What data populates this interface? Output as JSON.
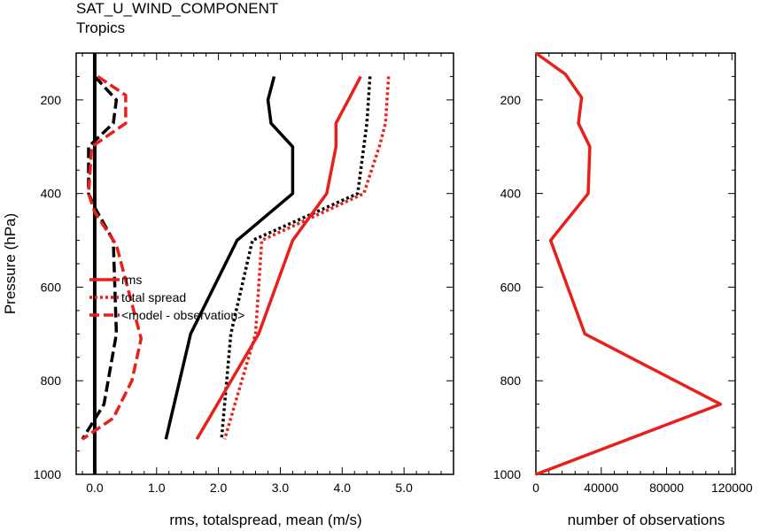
{
  "title": "SAT_U_WIND_COMPONENT",
  "subtitle": "Tropics",
  "colors": {
    "red": "#e8201c",
    "black": "#000000"
  },
  "chart_data": [
    {
      "type": "line",
      "orientation": "vertical-profile",
      "xlabel": "rms, totalspread, mean (m/s)",
      "ylabel": "Pressure (hPa)",
      "xlim": [
        -0.3,
        5.8
      ],
      "ylim": [
        1000,
        100
      ],
      "xticks": [
        0.0,
        1.0,
        2.0,
        3.0,
        4.0,
        5.0
      ],
      "xtick_labels": [
        "0.0",
        "1.0",
        "2.0",
        "3.0",
        "4.0",
        "5.0"
      ],
      "yticks": [
        200,
        400,
        600,
        800,
        1000
      ],
      "ytick_labels": [
        "200",
        "400",
        "600",
        "800",
        "1000"
      ],
      "zero_line_x": 0,
      "legend": {
        "placement": "center-left",
        "entries": [
          {
            "label": "rms",
            "style": "solid"
          },
          {
            "label": "total spread",
            "style": "dotted"
          },
          {
            "label": "<model - observation>",
            "style": "dashed"
          }
        ]
      },
      "series": [
        {
          "color": "black",
          "style": "solid",
          "x": [
            2.9,
            2.8,
            2.85,
            3.2,
            3.2,
            2.3,
            1.55,
            1.15
          ],
          "y": [
            150,
            200,
            250,
            300,
            400,
            500,
            700,
            925
          ]
        },
        {
          "color": "black",
          "style": "dotted",
          "x": [
            4.45,
            4.4,
            4.35,
            4.25,
            2.55,
            2.2,
            2.05
          ],
          "y": [
            150,
            250,
            300,
            400,
            500,
            700,
            925
          ]
        },
        {
          "color": "black",
          "style": "dashed",
          "x": [
            0.0,
            0.35,
            0.3,
            -0.1,
            -0.1,
            0.0,
            0.3,
            0.35,
            0.15,
            -0.2
          ],
          "y": [
            150,
            200,
            250,
            300,
            400,
            430,
            500,
            700,
            850,
            925
          ]
        },
        {
          "color": "red",
          "style": "solid",
          "x": [
            4.3,
            4.1,
            3.9,
            3.9,
            3.75,
            3.2,
            2.65,
            1.65
          ],
          "y": [
            150,
            200,
            250,
            300,
            400,
            500,
            700,
            925
          ]
        },
        {
          "color": "red",
          "style": "dotted",
          "x": [
            4.75,
            4.7,
            4.6,
            4.35,
            2.7,
            2.6,
            2.1
          ],
          "y": [
            150,
            250,
            300,
            400,
            500,
            700,
            925
          ]
        },
        {
          "color": "red",
          "style": "dashed",
          "x": [
            0.05,
            0.5,
            0.5,
            -0.05,
            -0.1,
            0.0,
            0.35,
            0.75,
            0.6,
            0.3,
            -0.2
          ],
          "y": [
            150,
            190,
            250,
            300,
            400,
            440,
            510,
            710,
            800,
            880,
            925
          ]
        }
      ]
    },
    {
      "type": "line",
      "orientation": "vertical-profile",
      "xlabel": "number of observations",
      "ylabel": "",
      "xlim": [
        0,
        122000
      ],
      "ylim": [
        1000,
        100
      ],
      "xticks": [
        0,
        40000,
        80000,
        120000
      ],
      "xtick_labels": [
        "0",
        "40000",
        "80000",
        "120000"
      ],
      "yticks": [
        200,
        400,
        600,
        800,
        1000
      ],
      "ytick_labels": [
        "200",
        "400",
        "600",
        "800",
        "1000"
      ],
      "series": [
        {
          "color": "red",
          "style": "solid",
          "x": [
            0,
            18000,
            28000,
            26000,
            33000,
            32000,
            9000,
            30000,
            113000,
            0
          ],
          "y": [
            100,
            145,
            195,
            250,
            300,
            400,
            500,
            700,
            850,
            1000
          ]
        }
      ]
    }
  ]
}
